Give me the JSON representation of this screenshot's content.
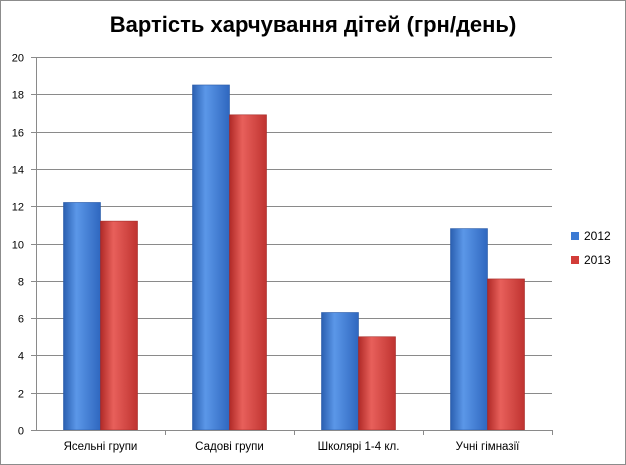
{
  "chart_data": {
    "type": "bar",
    "title": "Вартість харчування дітей (грн/день)",
    "categories": [
      "Ясельні групи",
      "Садові групи",
      "Школярі 1-4 кл.",
      "Учні гімназії"
    ],
    "series": [
      {
        "name": "2012",
        "values": [
          12.2,
          18.5,
          6.3,
          10.8
        ],
        "color": "#3c7ad3"
      },
      {
        "name": "2013",
        "values": [
          11.2,
          16.9,
          5.0,
          8.1
        ],
        "color": "#d23c38"
      }
    ],
    "ylim": [
      0,
      20
    ],
    "yticks": [
      0,
      2,
      4,
      6,
      8,
      10,
      12,
      14,
      16,
      18,
      20
    ],
    "grid": true,
    "legend_position": "right"
  }
}
